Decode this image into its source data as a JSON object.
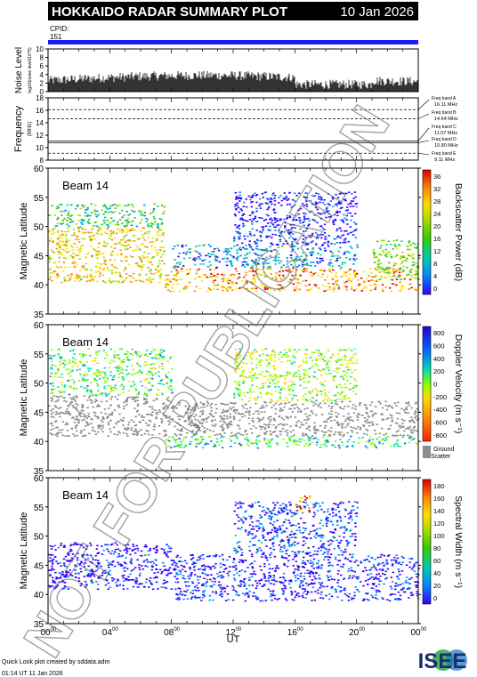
{
  "header": {
    "title": "HOKKAIDO RADAR SUMMARY PLOT",
    "date": "10 Jan 2026",
    "bar_color": "#000000"
  },
  "cpid": {
    "label": "CPID:",
    "value": "151",
    "bar_color": "#1a1aff"
  },
  "noise": {
    "ylabel": "Noise Level",
    "sublabel": "log10(noise level/10^5)",
    "yticks": [
      "0",
      "2",
      "4",
      "6",
      "8",
      "10"
    ],
    "ylim": [
      0,
      10
    ]
  },
  "frequency": {
    "ylabel": "Frequency",
    "unit": "(MHz)",
    "yticks": [
      "8",
      "10",
      "12",
      "14",
      "16",
      "18"
    ],
    "ylim": [
      8,
      18
    ],
    "bands": [
      {
        "name": "Freq band A",
        "value": "16.11 MHz",
        "mhz": 16.11
      },
      {
        "name": "Freq band B",
        "value": "14.64 MHz",
        "mhz": 14.64
      },
      {
        "name": "Freq band C",
        "value": "11.07 MHz",
        "mhz": 11.07
      },
      {
        "name": "Freq band D",
        "value": "10.80 MHz",
        "mhz": 10.8
      },
      {
        "name": "Freq band E",
        "value": "9.11 MHz",
        "mhz": 9.11
      }
    ]
  },
  "panels": [
    {
      "beam": "Beam 14",
      "ylabel": "Magnetic Latitude",
      "yticks": [
        "35",
        "40",
        "45",
        "50",
        "55",
        "60"
      ],
      "cbar_label": "Backscatter Power (dB)",
      "cbar_ticks": [
        "0",
        "4",
        "8",
        "12",
        "16",
        "20",
        "24",
        "28",
        "32",
        "36"
      ]
    },
    {
      "beam": "Beam 14",
      "ylabel": "Magnetic Latitude",
      "yticks": [
        "35",
        "40",
        "45",
        "50",
        "55",
        "60"
      ],
      "cbar_label": "Doppler Velocity (m s⁻¹)",
      "cbar_ticks": [
        "-800",
        "-600",
        "-400",
        "-200",
        "0",
        "200",
        "400",
        "600",
        "800"
      ],
      "ground_label_1": "Ground",
      "ground_label_2": "Scatter",
      "ground_color": "#8c8c8c"
    },
    {
      "beam": "Beam 14",
      "ylabel": "Magnetic Latitude",
      "yticks": [
        "35",
        "40",
        "45",
        "50",
        "55",
        "60"
      ],
      "cbar_label": "Spectral Width (m s⁻¹)",
      "cbar_ticks": [
        "0",
        "20",
        "40",
        "60",
        "80",
        "100",
        "120",
        "140",
        "160",
        "180"
      ]
    }
  ],
  "xaxis": {
    "ticks": [
      "00",
      "04",
      "08",
      "12",
      "16",
      "20",
      "00"
    ],
    "tick_sup": "00",
    "label": "UT"
  },
  "footer": {
    "line1": "Quick Look plot created by sddata.adm",
    "line2": "01:14 UT 11 Jan 2026",
    "logo": "ISEE"
  },
  "watermark": "NOT FOR PUBLICATION",
  "chart_data": {
    "type": "heatmap",
    "title": "HOKKAIDO RADAR SUMMARY PLOT",
    "date": "10 Jan 2026",
    "x_unit": "UT",
    "xlim": [
      0,
      24
    ],
    "ylim": [
      35,
      60
    ],
    "panels": [
      {
        "quantity": "Backscatter Power (dB)",
        "clim": [
          0,
          36
        ],
        "regions": [
          {
            "t": [
              0,
              7.5
            ],
            "lat": [
              40.5,
              50
            ],
            "value": 24
          },
          {
            "t": [
              0,
              7.5
            ],
            "lat": [
              50,
              54
            ],
            "value": 14
          },
          {
            "t": [
              7.5,
              24
            ],
            "lat": [
              39,
              43
            ],
            "value": 28
          },
          {
            "t": [
              8,
              20
            ],
            "lat": [
              43,
              47
            ],
            "value": 8
          },
          {
            "t": [
              12,
              20
            ],
            "lat": [
              47,
              56
            ],
            "value": 2
          },
          {
            "t": [
              21,
              24
            ],
            "lat": [
              41,
              48
            ],
            "value": 18
          }
        ]
      },
      {
        "quantity": "Doppler Velocity (m s⁻¹)",
        "clim": [
          -800,
          800
        ],
        "regions": [
          {
            "t": [
              0,
              8
            ],
            "lat": [
              41,
              48
            ],
            "value": "ground scatter"
          },
          {
            "t": [
              0,
              8
            ],
            "lat": [
              48,
              56
            ],
            "value": 100
          },
          {
            "t": [
              7.5,
              24
            ],
            "lat": [
              39,
              41
            ],
            "value": 150
          },
          {
            "t": [
              8,
              24
            ],
            "lat": [
              41,
              47
            ],
            "value": "ground scatter"
          },
          {
            "t": [
              12,
              20
            ],
            "lat": [
              47,
              56
            ],
            "value": -50
          }
        ]
      },
      {
        "quantity": "Spectral Width (m s⁻¹)",
        "clim": [
          0,
          180
        ],
        "regions": [
          {
            "t": [
              0,
              8
            ],
            "lat": [
              41,
              49
            ],
            "value": 5
          },
          {
            "t": [
              8,
              24
            ],
            "lat": [
              39,
              47
            ],
            "value": 10
          },
          {
            "t": [
              12,
              20
            ],
            "lat": [
              47,
              56
            ],
            "value": 20
          },
          {
            "t": [
              16,
              17
            ],
            "lat": [
              54,
              57
            ],
            "value": 150
          }
        ]
      }
    ]
  }
}
